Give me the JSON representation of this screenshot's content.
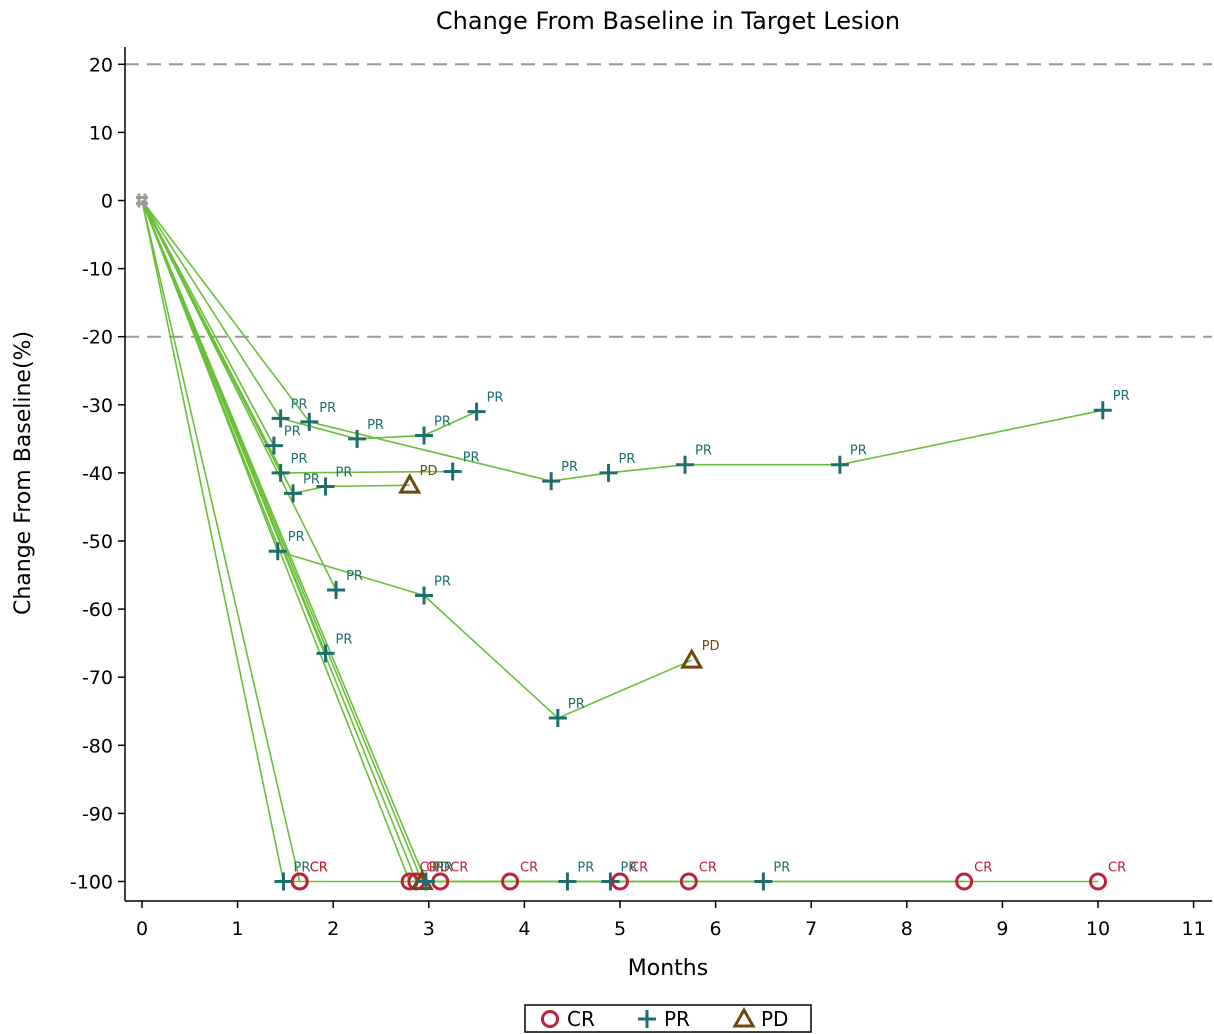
{
  "chart_data": {
    "type": "line",
    "title": "Change From Baseline in Target Lesion",
    "xlabel": "Months",
    "ylabel": "Change From Baseline(%)",
    "xlim": [
      -0.15,
      11.05
    ],
    "ylim": [
      -103,
      22
    ],
    "xticks": [
      0,
      1,
      2,
      3,
      4,
      5,
      6,
      7,
      8,
      9,
      10,
      11
    ],
    "yticks": [
      20,
      10,
      0,
      -10,
      -20,
      -30,
      -40,
      -50,
      -60,
      -70,
      -80,
      -90,
      -100
    ],
    "reference_lines": [
      20,
      -20
    ],
    "grid": false,
    "legend_position": "bottom-center",
    "colors": {
      "line": "#6abf3a",
      "CR": "#c0203a",
      "PR": "#1e6e6e",
      "PD": "#6b4a12",
      "baseline_marker": "#999999",
      "reference": "#999999"
    },
    "legend": [
      {
        "code": "CR",
        "label": "CR",
        "marker": "circle"
      },
      {
        "code": "PR",
        "label": "PR",
        "marker": "plus"
      },
      {
        "code": "PD",
        "label": "PD",
        "marker": "triangle"
      }
    ],
    "series": [
      {
        "points": [
          [
            0,
            0
          ],
          [
            1.45,
            -32
          ],
          [
            2.25,
            -35
          ],
          [
            2.95,
            -34.5
          ],
          [
            3.5,
            -31
          ]
        ],
        "responses": [
          "",
          "PR",
          "PR",
          "PR",
          "PR"
        ]
      },
      {
        "points": [
          [
            0,
            0
          ],
          [
            1.75,
            -32.5
          ],
          [
            4.28,
            -41.2
          ],
          [
            4.88,
            -40
          ],
          [
            5.68,
            -38.8
          ],
          [
            7.3,
            -38.8
          ],
          [
            10.05,
            -30.8
          ]
        ],
        "responses": [
          "",
          "PR",
          "PR",
          "PR",
          "PR",
          "PR",
          "PR"
        ]
      },
      {
        "points": [
          [
            0,
            0
          ],
          [
            1.38,
            -36
          ]
        ],
        "responses": [
          "",
          "PR"
        ]
      },
      {
        "points": [
          [
            0,
            0
          ],
          [
            1.45,
            -40
          ],
          [
            3.25,
            -39.8
          ]
        ],
        "responses": [
          "",
          "PR",
          "PR"
        ]
      },
      {
        "points": [
          [
            0,
            0
          ],
          [
            1.58,
            -43
          ],
          [
            1.92,
            -42
          ],
          [
            2.8,
            -41.8
          ]
        ],
        "responses": [
          "",
          "PR",
          "PR",
          "PD"
        ]
      },
      {
        "points": [
          [
            0,
            0
          ],
          [
            1.42,
            -51.5
          ],
          [
            2.95,
            -58
          ],
          [
            4.35,
            -76
          ],
          [
            5.75,
            -67.5
          ]
        ],
        "responses": [
          "",
          "PR",
          "PR",
          "PR",
          "PD"
        ]
      },
      {
        "points": [
          [
            0,
            0
          ],
          [
            2.03,
            -57.2
          ]
        ],
        "responses": [
          "",
          "PR"
        ]
      },
      {
        "points": [
          [
            0,
            0
          ],
          [
            1.92,
            -66.5
          ]
        ],
        "responses": [
          "",
          "PR"
        ]
      },
      {
        "points": [
          [
            0,
            0
          ],
          [
            1.48,
            -100
          ],
          [
            1.65,
            -100
          ]
        ],
        "responses": [
          "",
          "PR",
          "CR"
        ]
      },
      {
        "points": [
          [
            0,
            0
          ],
          [
            1.65,
            -100
          ],
          [
            4.45,
            -100
          ],
          [
            6.5,
            -100
          ],
          [
            8.6,
            -100
          ]
        ],
        "responses": [
          "",
          "CR",
          "PR",
          "PR",
          "CR"
        ]
      },
      {
        "points": [
          [
            0,
            0
          ],
          [
            2.8,
            -100
          ],
          [
            3.85,
            -100
          ],
          [
            4.9,
            -100
          ],
          [
            10.0,
            -100
          ]
        ],
        "responses": [
          "",
          "CR",
          "CR",
          "PR",
          "CR"
        ]
      },
      {
        "points": [
          [
            0,
            0
          ],
          [
            2.87,
            -100
          ],
          [
            5.0,
            -100
          ]
        ],
        "responses": [
          "",
          "CR",
          "CR"
        ]
      },
      {
        "points": [
          [
            0,
            0
          ],
          [
            2.93,
            -100
          ],
          [
            3.12,
            -100
          ],
          [
            5.72,
            -100
          ]
        ],
        "responses": [
          "",
          "PD",
          "CR",
          "CR"
        ]
      },
      {
        "points": [
          [
            0,
            0
          ],
          [
            2.97,
            -100
          ]
        ],
        "responses": [
          "",
          "PR"
        ]
      }
    ]
  }
}
